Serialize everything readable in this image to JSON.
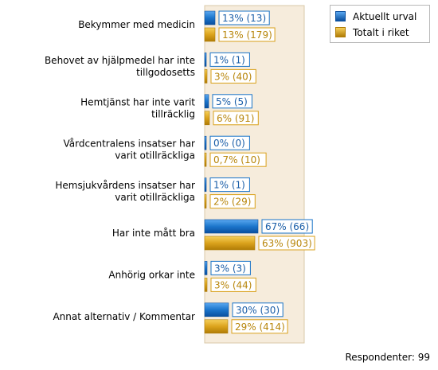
{
  "chart_data": {
    "type": "bar",
    "orientation": "horizontal",
    "categories": [
      "Bekymmer med medicin",
      "Behovet av hjälpmedel har inte tillgodosetts",
      "Hemtjänst har inte varit tillräcklig",
      "Vårdcentralens insatser har varit otillräckliga",
      "Hemsjukvårdens insatser har varit otillräckliga",
      "Har inte mått bra",
      "Anhörig orkar inte",
      "Annat alternativ / Kommentar"
    ],
    "series": [
      {
        "name": "Aktuellt urval",
        "color": "#1873c8",
        "values": [
          13,
          1,
          5,
          0,
          1,
          67,
          3,
          30
        ],
        "labels": [
          "13% (13)",
          "1% (1)",
          "5% (5)",
          "0% (0)",
          "1% (1)",
          "67% (66)",
          "3% (3)",
          "30% (30)"
        ]
      },
      {
        "name": "Totalt i riket",
        "color": "#d9a11a",
        "values": [
          13,
          3,
          6,
          0.7,
          2,
          63,
          3,
          29
        ],
        "labels": [
          "13% (179)",
          "3% (40)",
          "6% (91)",
          "0,7% (10)",
          "2% (29)",
          "63% (903)",
          "3% (44)",
          "29% (414)"
        ]
      }
    ],
    "xlim": [
      0,
      100
    ],
    "legend_position": "top-right"
  },
  "footer": {
    "respondents": "Respondenter: 99"
  }
}
